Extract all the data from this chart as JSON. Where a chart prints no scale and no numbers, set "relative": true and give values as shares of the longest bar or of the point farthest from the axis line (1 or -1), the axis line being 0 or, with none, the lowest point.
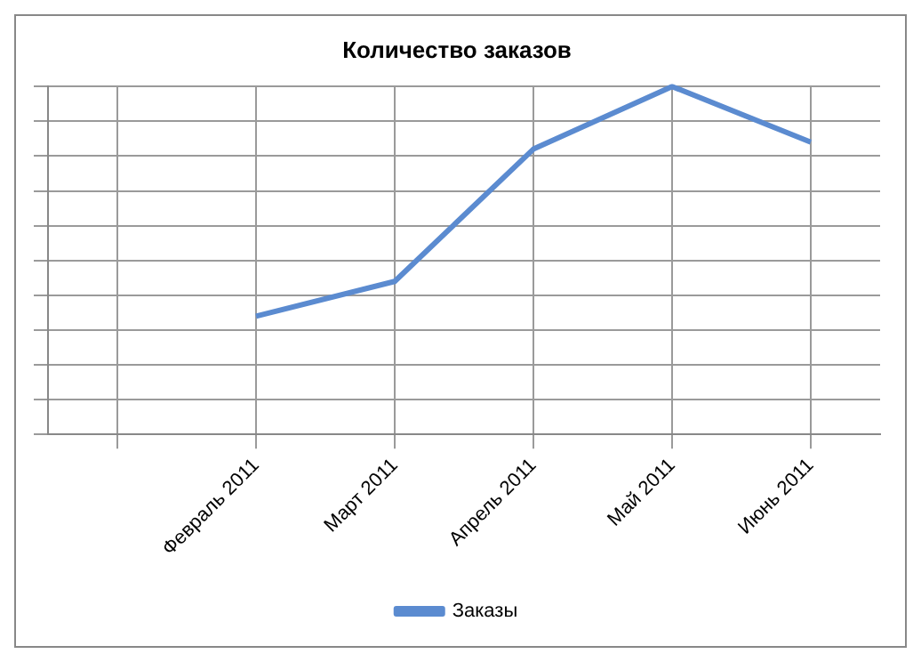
{
  "chart_data": {
    "type": "line",
    "title": "Количество заказов",
    "categories": [
      null,
      "Февраль 2011",
      "Март 2011",
      "Апрель 2011",
      "Май 2011",
      "Июнь 2011"
    ],
    "series": [
      {
        "name": "Заказы",
        "color": "#5b8bd0",
        "values": [
          null,
          0.34,
          0.44,
          0.82,
          1,
          0.84
        ]
      }
    ],
    "relative": true,
    "grid": true,
    "legend": "bottom",
    "marker": "none",
    "line_style": "solid"
  }
}
